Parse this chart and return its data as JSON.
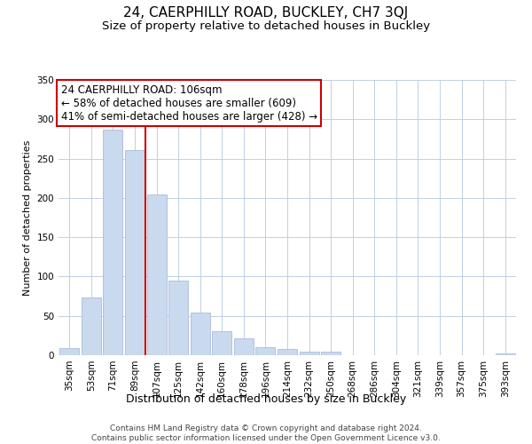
{
  "title": "24, CAERPHILLY ROAD, BUCKLEY, CH7 3QJ",
  "subtitle": "Size of property relative to detached houses in Buckley",
  "xlabel": "Distribution of detached houses by size in Buckley",
  "ylabel": "Number of detached properties",
  "categories": [
    "35sqm",
    "53sqm",
    "71sqm",
    "89sqm",
    "107sqm",
    "125sqm",
    "142sqm",
    "160sqm",
    "178sqm",
    "196sqm",
    "214sqm",
    "232sqm",
    "250sqm",
    "268sqm",
    "286sqm",
    "304sqm",
    "321sqm",
    "339sqm",
    "357sqm",
    "375sqm",
    "393sqm"
  ],
  "values": [
    9,
    73,
    287,
    261,
    204,
    95,
    54,
    31,
    21,
    10,
    8,
    4,
    4,
    0,
    0,
    0,
    0,
    0,
    0,
    0,
    2
  ],
  "bar_color": "#c9d9ee",
  "bar_edge_color": "#aabbdd",
  "vline_x_index": 4,
  "vline_color": "#cc0000",
  "annotation_box_text": "24 CAERPHILLY ROAD: 106sqm\n← 58% of detached houses are smaller (609)\n41% of semi-detached houses are larger (428) →",
  "annotation_box_color": "#ffffff",
  "annotation_box_edge_color": "#cc0000",
  "ylim": [
    0,
    350
  ],
  "yticks": [
    0,
    50,
    100,
    150,
    200,
    250,
    300,
    350
  ],
  "footer_text": "Contains HM Land Registry data © Crown copyright and database right 2024.\nContains public sector information licensed under the Open Government Licence v3.0.",
  "title_fontsize": 11,
  "subtitle_fontsize": 9.5,
  "xlabel_fontsize": 9,
  "ylabel_fontsize": 8,
  "tick_fontsize": 7.5,
  "annotation_fontsize": 8.5,
  "footer_fontsize": 6.5
}
